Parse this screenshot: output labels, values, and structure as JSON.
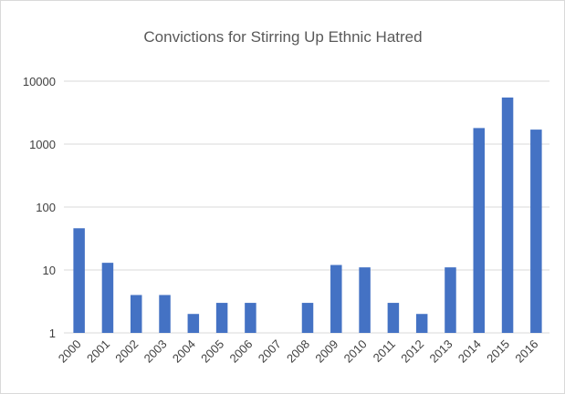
{
  "chart_data": {
    "type": "bar",
    "title": "Convictions for Stirring Up Ethnic Hatred",
    "xlabel": "",
    "ylabel": "",
    "y_scale": "log",
    "ylim": [
      1,
      10000
    ],
    "y_ticks": [
      "1",
      "10",
      "100",
      "1000",
      "10000"
    ],
    "grid": true,
    "legend": "none",
    "categories": [
      "2000",
      "2001",
      "2002",
      "2003",
      "2004",
      "2005",
      "2006",
      "2007",
      "2008",
      "2009",
      "2010",
      "2011",
      "2012",
      "2013",
      "2014",
      "2015",
      "2016"
    ],
    "values": [
      46,
      13,
      4,
      4,
      2,
      3,
      3,
      1,
      3,
      12,
      11,
      3,
      2,
      11,
      1800,
      5500,
      1700
    ],
    "colors": {
      "bar": "#4472C4",
      "grid": "#d9d9d9",
      "text": "#595959"
    }
  }
}
